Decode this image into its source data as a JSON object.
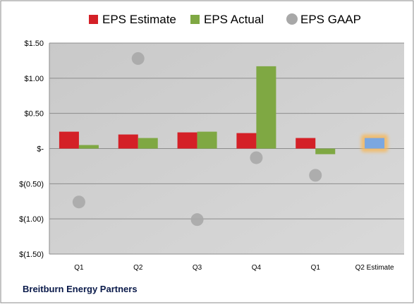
{
  "company_name": "Breitburn Energy Partners",
  "chart_data": {
    "type": "bar",
    "categories": [
      "Q1",
      "Q2",
      "Q3",
      "Q4",
      "Q1",
      "Q2 Estimate"
    ],
    "series": [
      {
        "name": "EPS Estimate",
        "color": "#d42027",
        "values": [
          0.24,
          0.2,
          0.23,
          0.22,
          0.15,
          null
        ]
      },
      {
        "name": "EPS Actual",
        "color": "#7fa843",
        "values": [
          0.05,
          0.15,
          0.24,
          1.17,
          -0.08,
          null
        ]
      },
      {
        "name": "EPS GAAP",
        "type": "scatter",
        "color": "#a8a8a8",
        "values": [
          -0.76,
          1.28,
          -1.01,
          -0.13,
          -0.38,
          null
        ]
      }
    ],
    "estimate": {
      "category": "Q2 Estimate",
      "value": 0.15,
      "color": "#7ba7e0",
      "highlight": "#f5b95e"
    },
    "ylim": [
      -1.5,
      1.5
    ],
    "yticks": [
      1.5,
      1.0,
      0.5,
      0,
      -0.5,
      -1.0,
      -1.5
    ],
    "ytick_labels": [
      "$1.50",
      "$1.00",
      "$0.50",
      "$-",
      "$(0.50)",
      "$(1.00)",
      "$(1.50)"
    ],
    "grid": true,
    "legend_position": "top"
  }
}
